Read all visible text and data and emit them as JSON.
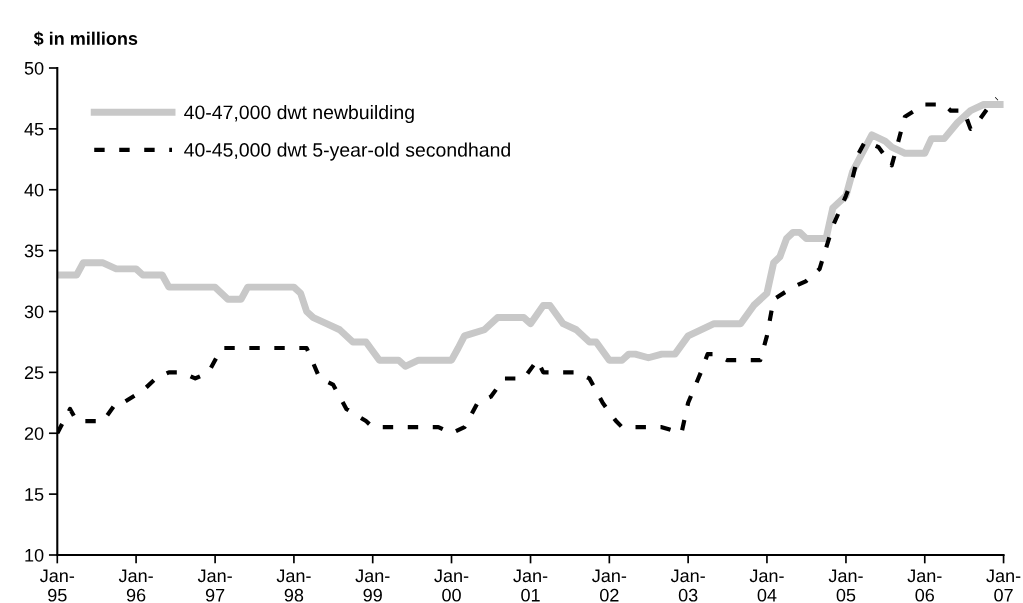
{
  "chart_data": {
    "type": "line",
    "ylabel": "$ in millions",
    "xlim": [
      "1995-01",
      "2007-01"
    ],
    "xticks": [
      {
        "value": "1995-01",
        "label": "Jan-\n95"
      },
      {
        "value": "1996-01",
        "label": "Jan-\n96"
      },
      {
        "value": "1997-01",
        "label": "Jan-\n97"
      },
      {
        "value": "1998-01",
        "label": "Jan-\n98"
      },
      {
        "value": "1999-01",
        "label": "Jan-\n99"
      },
      {
        "value": "2000-01",
        "label": "Jan-\n00"
      },
      {
        "value": "2001-01",
        "label": "Jan-\n01"
      },
      {
        "value": "2002-01",
        "label": "Jan-\n02"
      },
      {
        "value": "2003-01",
        "label": "Jan-\n03"
      },
      {
        "value": "2004-01",
        "label": "Jan-\n04"
      },
      {
        "value": "2005-01",
        "label": "Jan-\n05"
      },
      {
        "value": "2006-01",
        "label": "Jan-\n06"
      },
      {
        "value": "2007-01",
        "label": "Jan-\n07"
      }
    ],
    "ylim": [
      10,
      50
    ],
    "yticks": [
      10,
      15,
      20,
      25,
      30,
      35,
      40,
      45,
      50
    ],
    "grid": false,
    "legend": "top left",
    "marker": "none",
    "series": [
      {
        "name": "40-47,000 dwt newbuilding",
        "color": "#c8c8c8",
        "line_style": "solid",
        "x": [
          "1995-01",
          "1995-04",
          "1995-05",
          "1995-08",
          "1995-10",
          "1996-01",
          "1996-02",
          "1996-05",
          "1996-06",
          "1997-01",
          "1997-03",
          "1997-05",
          "1997-06",
          "1998-01",
          "1998-02",
          "1998-03",
          "1998-04",
          "1998-06",
          "1998-08",
          "1998-10",
          "1998-12",
          "1999-02",
          "1999-05",
          "1999-06",
          "1999-08",
          "2000-01",
          "2000-02",
          "2000-03",
          "2000-06",
          "2000-08",
          "2000-12",
          "2001-01",
          "2001-03",
          "2001-04",
          "2001-06",
          "2001-08",
          "2001-10",
          "2001-11",
          "2002-01",
          "2002-03",
          "2002-04",
          "2002-05",
          "2002-07",
          "2002-09",
          "2002-11",
          "2003-01",
          "2003-03",
          "2003-05",
          "2003-09",
          "2003-11",
          "2004-01",
          "2004-02",
          "2004-03",
          "2004-04",
          "2004-05",
          "2004-06",
          "2004-07",
          "2004-10",
          "2004-11",
          "2005-01",
          "2005-02",
          "2005-04",
          "2005-05",
          "2005-07",
          "2005-08",
          "2005-10",
          "2006-01",
          "2006-02",
          "2006-04",
          "2006-06",
          "2006-08",
          "2006-10",
          "2007-01"
        ],
        "values": [
          33,
          33,
          34,
          34,
          33.5,
          33.5,
          33,
          33,
          32,
          32,
          31,
          31,
          32,
          32,
          31.5,
          30,
          29.5,
          29,
          28.5,
          27.5,
          27.5,
          26,
          26,
          25.5,
          26,
          26,
          27,
          28,
          28.5,
          29.5,
          29.5,
          29,
          30.5,
          30.5,
          29,
          28.5,
          27.5,
          27.5,
          26,
          26,
          26.5,
          26.5,
          26.2,
          26.5,
          26.5,
          28,
          28.5,
          29,
          29,
          30.5,
          31.5,
          34,
          34.5,
          36,
          36.5,
          36.5,
          36,
          36,
          38.5,
          39.5,
          41.5,
          43.5,
          44.5,
          44,
          43.5,
          43,
          43,
          44.2,
          44.2,
          45.5,
          46.5,
          47,
          47
        ]
      },
      {
        "name": "40-45,000 dwt 5-year-old secondhand",
        "color": "#000000",
        "line_style": "dashed",
        "x": [
          "1995-01",
          "1995-03",
          "1995-04",
          "1995-08",
          "1995-10",
          "1995-11",
          "1996-02",
          "1996-04",
          "1996-06",
          "1996-08",
          "1996-10",
          "1996-12",
          "1997-02",
          "1998-03",
          "1998-05",
          "1998-07",
          "1998-09",
          "1998-12",
          "1999-01",
          "1999-08",
          "1999-11",
          "2000-01",
          "2000-03",
          "2000-05",
          "2000-07",
          "2000-09",
          "2000-12",
          "2001-02",
          "2001-03",
          "2001-08",
          "2001-10",
          "2001-12",
          "2002-02",
          "2002-03",
          "2002-09",
          "2002-12",
          "2003-01",
          "2003-03",
          "2003-04",
          "2003-05",
          "2003-07",
          "2003-12",
          "2004-01",
          "2004-02",
          "2004-05",
          "2004-07",
          "2004-09",
          "2004-11",
          "2005-01",
          "2005-02",
          "2005-03",
          "2005-04",
          "2005-06",
          "2005-08",
          "2005-09",
          "2005-10",
          "2006-01",
          "2006-04",
          "2006-05",
          "2006-07",
          "2006-08",
          "2006-09",
          "2006-11",
          "2006-12"
        ],
        "values": [
          20,
          22,
          21,
          21,
          22.5,
          22.5,
          23.5,
          24.5,
          25,
          25,
          24.5,
          25,
          27,
          27,
          24.5,
          24,
          22,
          21,
          20.5,
          20.5,
          20.5,
          20,
          20.5,
          22.5,
          23,
          24.5,
          24.5,
          26,
          25,
          25,
          24.5,
          22.5,
          21,
          20.5,
          20.5,
          20,
          22.5,
          25,
          26.5,
          26.5,
          26,
          26,
          28,
          31,
          32,
          32.5,
          33.5,
          37,
          39.5,
          41,
          43,
          44,
          43.5,
          42,
          44,
          46,
          47,
          47,
          46.5,
          46.5,
          45,
          45.5,
          47,
          47.5
        ]
      }
    ]
  }
}
